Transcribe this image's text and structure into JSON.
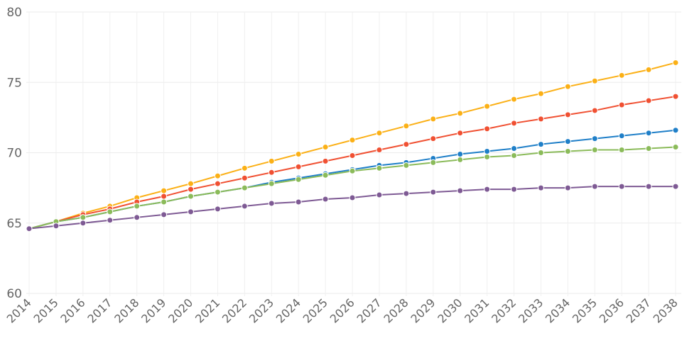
{
  "chart_data": {
    "type": "line",
    "title": "",
    "xlabel": "",
    "ylabel": "",
    "ylim": [
      60,
      80
    ],
    "yticks": [
      60,
      65,
      70,
      75,
      80
    ],
    "grid": true,
    "legend": "none",
    "x": [
      2014,
      2015,
      2016,
      2017,
      2018,
      2019,
      2020,
      2021,
      2022,
      2023,
      2024,
      2025,
      2026,
      2027,
      2028,
      2029,
      2030,
      2031,
      2032,
      2033,
      2034,
      2035,
      2036,
      2037,
      2038
    ],
    "series": [
      {
        "color": "#fbb016",
        "values": [
          64.6,
          65.1,
          65.7,
          66.2,
          66.8,
          67.3,
          67.8,
          68.35,
          68.9,
          69.4,
          69.9,
          70.4,
          70.9,
          71.4,
          71.9,
          72.4,
          72.8,
          73.3,
          73.8,
          74.2,
          74.7,
          75.1,
          75.5,
          75.9,
          76.4
        ]
      },
      {
        "color": "#f05032",
        "values": [
          64.6,
          65.1,
          65.6,
          66.0,
          66.5,
          66.9,
          67.4,
          67.8,
          68.2,
          68.6,
          69.0,
          69.4,
          69.8,
          70.2,
          70.6,
          71.0,
          71.4,
          71.7,
          72.1,
          72.4,
          72.7,
          73.0,
          73.4,
          73.7,
          74.0
        ]
      },
      {
        "color": "#1f7fc8",
        "values": [
          64.6,
          65.1,
          65.4,
          65.8,
          66.2,
          66.5,
          66.9,
          67.2,
          67.5,
          67.9,
          68.2,
          68.5,
          68.8,
          69.1,
          69.3,
          69.6,
          69.9,
          70.1,
          70.3,
          70.6,
          70.8,
          71.0,
          71.2,
          71.4,
          71.6
        ]
      },
      {
        "color": "#8bbb5a",
        "values": [
          64.6,
          65.1,
          65.4,
          65.8,
          66.2,
          66.5,
          66.9,
          67.2,
          67.5,
          67.8,
          68.1,
          68.4,
          68.7,
          68.9,
          69.1,
          69.3,
          69.5,
          69.7,
          69.8,
          70.0,
          70.1,
          70.2,
          70.2,
          70.3,
          70.4
        ]
      },
      {
        "color": "#7e5a94",
        "values": [
          64.6,
          64.8,
          65.0,
          65.2,
          65.4,
          65.6,
          65.8,
          66.0,
          66.2,
          66.4,
          66.5,
          66.7,
          66.8,
          67.0,
          67.1,
          67.2,
          67.3,
          67.4,
          67.4,
          67.5,
          67.5,
          67.6,
          67.6,
          67.6,
          67.6
        ]
      }
    ]
  }
}
